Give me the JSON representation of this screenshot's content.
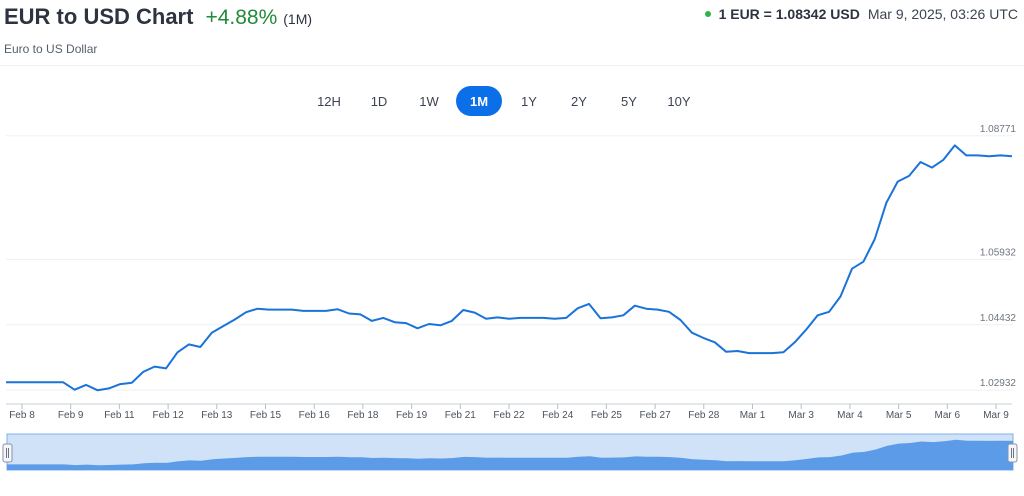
{
  "header": {
    "title": "EUR to USD Chart",
    "change": "+4.88%",
    "period": "(1M)",
    "subtitle": "Euro to US Dollar",
    "rate": "1 EUR = 1.08342 USD",
    "timestamp": "Mar 9, 2025, 03:26 UTC",
    "status_color": "#2fb34a",
    "change_color": "#238a3a"
  },
  "ranges": [
    {
      "label": "12H",
      "active": false
    },
    {
      "label": "1D",
      "active": false
    },
    {
      "label": "1W",
      "active": false
    },
    {
      "label": "1M",
      "active": true
    },
    {
      "label": "1Y",
      "active": false
    },
    {
      "label": "2Y",
      "active": false
    },
    {
      "label": "5Y",
      "active": false
    },
    {
      "label": "10Y",
      "active": false
    }
  ],
  "colors": {
    "accent": "#0b6fe8",
    "line": "#1a73d8",
    "navigator_fill": "#5b9be8",
    "navigator_bg": "#cfe2f8"
  },
  "chart_data": {
    "type": "line",
    "title": "EUR to USD Chart",
    "xlabel": "",
    "ylabel": "",
    "x_ticks": [
      "Feb 8",
      "Feb 9",
      "Feb 11",
      "Feb 12",
      "Feb 13",
      "Feb 15",
      "Feb 16",
      "Feb 18",
      "Feb 19",
      "Feb 21",
      "Feb 22",
      "Feb 24",
      "Feb 25",
      "Feb 27",
      "Feb 28",
      "Mar 1",
      "Mar 3",
      "Mar 4",
      "Mar 5",
      "Mar 6",
      "Mar 9"
    ],
    "y_ticks": [
      1.02932,
      1.04432,
      1.05932,
      1.08771
    ],
    "ylim": [
      1.0275,
      1.0895
    ],
    "grid": true,
    "series": [
      {
        "values": [
          1.0311,
          1.0311,
          1.0311,
          1.0311,
          1.0311,
          1.0311,
          1.0294,
          1.0305,
          1.0293,
          1.0297,
          1.0307,
          1.031,
          1.0335,
          1.0347,
          1.0343,
          1.038,
          1.0398,
          1.0392,
          1.0425,
          1.044,
          1.0455,
          1.0472,
          1.048,
          1.0478,
          1.0478,
          1.0478,
          1.0475,
          1.0475,
          1.0475,
          1.0479,
          1.0469,
          1.0467,
          1.0452,
          1.0459,
          1.0449,
          1.0447,
          1.0435,
          1.0445,
          1.0442,
          1.0452,
          1.0477,
          1.0471,
          1.0457,
          1.046,
          1.0457,
          1.0459,
          1.0459,
          1.0459,
          1.0457,
          1.0459,
          1.0481,
          1.0491,
          1.0458,
          1.046,
          1.0465,
          1.0487,
          1.048,
          1.0478,
          1.0473,
          1.0454,
          1.0425,
          1.0413,
          1.0403,
          1.0381,
          1.0383,
          1.0378,
          1.0378,
          1.0378,
          1.038,
          1.0403,
          1.0432,
          1.0465,
          1.0473,
          1.0508,
          1.0572,
          1.0588,
          1.064,
          1.0723,
          1.0772,
          1.0785,
          1.0817,
          1.0804,
          1.0822,
          1.0855,
          1.0832,
          1.0832,
          1.083,
          1.0832,
          1.083
        ]
      }
    ],
    "last_value": 1.08342
  },
  "navigator": {
    "left_handle": "left-handle-grip-icon",
    "right_handle": "right-handle-grip-icon"
  }
}
